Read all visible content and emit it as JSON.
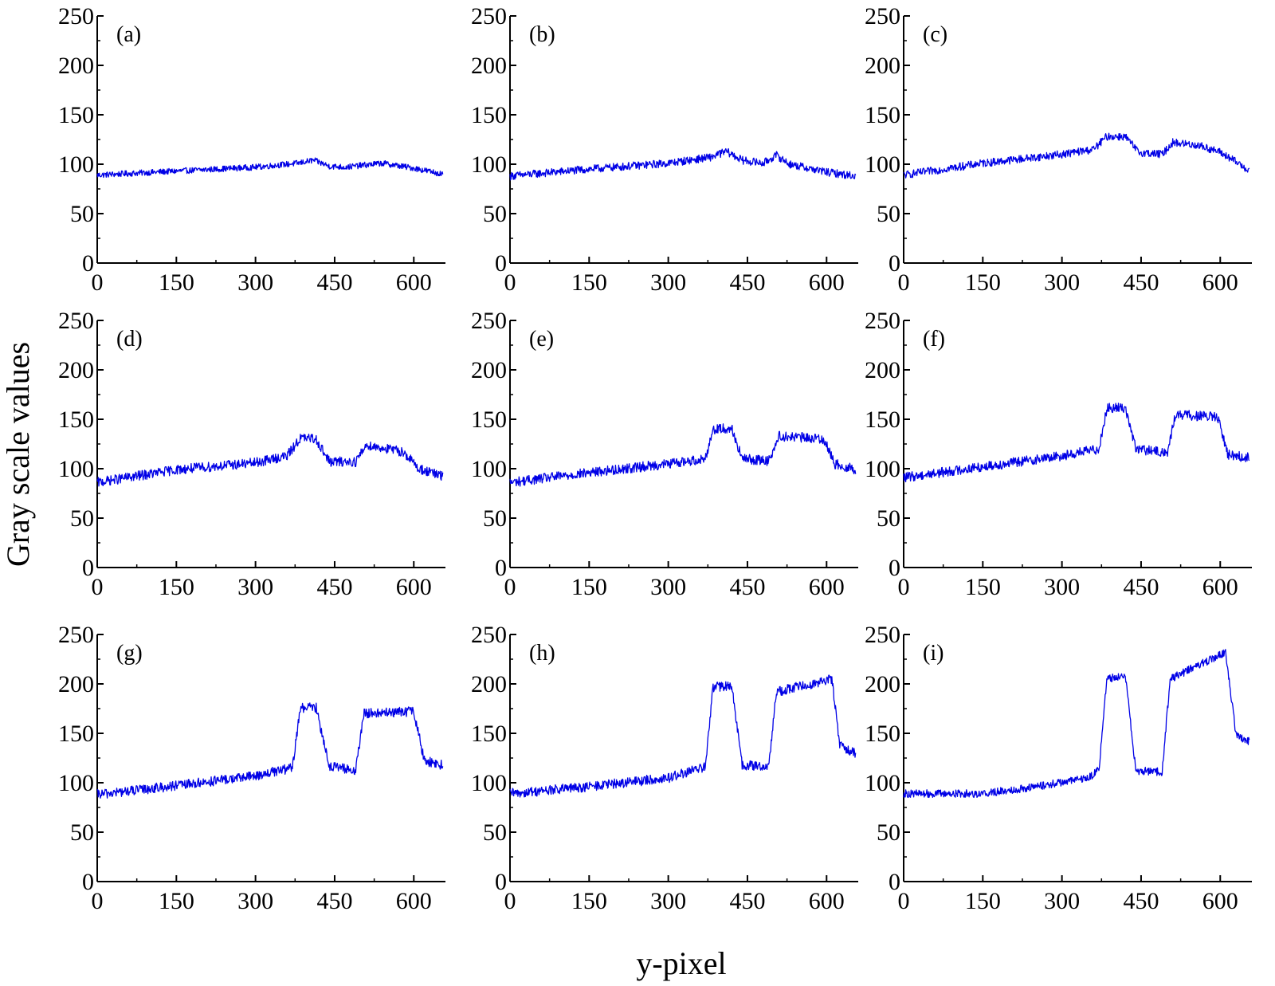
{
  "figure": {
    "ylabel": "Gray scale values",
    "xlabel": "y-pixel"
  },
  "style": {
    "series_color": "#0000e6",
    "axis_color": "#000000"
  },
  "chart_data": [
    {
      "type": "line",
      "panel_label": "(a)",
      "xlim": [
        0,
        660
      ],
      "ylim": [
        0,
        250
      ],
      "x_ticks": [
        "0",
        "150",
        "300",
        "450",
        "600"
      ],
      "y_ticks": [
        "0",
        "50",
        "100",
        "150",
        "200",
        "250"
      ],
      "grid": false,
      "noise": 3,
      "profile": [
        [
          0,
          89
        ],
        [
          150,
          93
        ],
        [
          300,
          97
        ],
        [
          380,
          101
        ],
        [
          410,
          104
        ],
        [
          440,
          98
        ],
        [
          470,
          97
        ],
        [
          540,
          101
        ],
        [
          600,
          96
        ],
        [
          655,
          90
        ]
      ]
    },
    {
      "type": "line",
      "panel_label": "(b)",
      "xlim": [
        0,
        660
      ],
      "ylim": [
        0,
        250
      ],
      "x_ticks": [
        "0",
        "150",
        "300",
        "450",
        "600"
      ],
      "y_ticks": [
        "0",
        "50",
        "100",
        "150",
        "200",
        "250"
      ],
      "grid": false,
      "noise": 4,
      "profile": [
        [
          0,
          88
        ],
        [
          150,
          95
        ],
        [
          300,
          101
        ],
        [
          380,
          107
        ],
        [
          410,
          113
        ],
        [
          440,
          104
        ],
        [
          480,
          101
        ],
        [
          505,
          109
        ],
        [
          530,
          100
        ],
        [
          600,
          92
        ],
        [
          655,
          88
        ]
      ]
    },
    {
      "type": "line",
      "panel_label": "(c)",
      "xlim": [
        0,
        660
      ],
      "ylim": [
        0,
        250
      ],
      "x_ticks": [
        "0",
        "150",
        "300",
        "450",
        "600"
      ],
      "y_ticks": [
        "0",
        "50",
        "100",
        "150",
        "200",
        "250"
      ],
      "grid": false,
      "noise": 4,
      "profile": [
        [
          0,
          89
        ],
        [
          150,
          101
        ],
        [
          300,
          110
        ],
        [
          360,
          115
        ],
        [
          385,
          128
        ],
        [
          420,
          128
        ],
        [
          445,
          112
        ],
        [
          490,
          110
        ],
        [
          510,
          122
        ],
        [
          560,
          119
        ],
        [
          600,
          112
        ],
        [
          640,
          99
        ],
        [
          655,
          94
        ]
      ]
    },
    {
      "type": "line",
      "panel_label": "(d)",
      "xlim": [
        0,
        660
      ],
      "ylim": [
        0,
        250
      ],
      "x_ticks": [
        "0",
        "150",
        "300",
        "450",
        "600"
      ],
      "y_ticks": [
        "0",
        "50",
        "100",
        "150",
        "200",
        "250"
      ],
      "grid": false,
      "noise": 5,
      "profile": [
        [
          0,
          86
        ],
        [
          150,
          99
        ],
        [
          300,
          106
        ],
        [
          360,
          113
        ],
        [
          385,
          131
        ],
        [
          415,
          130
        ],
        [
          440,
          107
        ],
        [
          490,
          107
        ],
        [
          510,
          124
        ],
        [
          580,
          117
        ],
        [
          610,
          100
        ],
        [
          655,
          92
        ]
      ]
    },
    {
      "type": "line",
      "panel_label": "(e)",
      "xlim": [
        0,
        660
      ],
      "ylim": [
        0,
        250
      ],
      "x_ticks": [
        "0",
        "150",
        "300",
        "450",
        "600"
      ],
      "y_ticks": [
        "0",
        "50",
        "100",
        "150",
        "200",
        "250"
      ],
      "grid": false,
      "noise": 5,
      "profile": [
        [
          0,
          86
        ],
        [
          150,
          96
        ],
        [
          300,
          105
        ],
        [
          370,
          110
        ],
        [
          385,
          140
        ],
        [
          420,
          141
        ],
        [
          440,
          110
        ],
        [
          490,
          108
        ],
        [
          510,
          133
        ],
        [
          595,
          130
        ],
        [
          615,
          105
        ],
        [
          655,
          99
        ]
      ]
    },
    {
      "type": "line",
      "panel_label": "(f)",
      "xlim": [
        0,
        660
      ],
      "ylim": [
        0,
        250
      ],
      "x_ticks": [
        "0",
        "150",
        "300",
        "450",
        "600"
      ],
      "y_ticks": [
        "0",
        "50",
        "100",
        "150",
        "200",
        "250"
      ],
      "grid": false,
      "noise": 5,
      "profile": [
        [
          0,
          91
        ],
        [
          150,
          102
        ],
        [
          300,
          113
        ],
        [
          370,
          120
        ],
        [
          385,
          161
        ],
        [
          420,
          162
        ],
        [
          440,
          120
        ],
        [
          500,
          116
        ],
        [
          515,
          155
        ],
        [
          595,
          152
        ],
        [
          615,
          114
        ],
        [
          655,
          111
        ]
      ]
    },
    {
      "type": "line",
      "panel_label": "(g)",
      "xlim": [
        0,
        660
      ],
      "ylim": [
        0,
        250
      ],
      "x_ticks": [
        "0",
        "150",
        "300",
        "450",
        "600"
      ],
      "y_ticks": [
        "0",
        "50",
        "100",
        "150",
        "200",
        "250"
      ],
      "grid": false,
      "noise": 5,
      "profile": [
        [
          0,
          88
        ],
        [
          150,
          97
        ],
        [
          300,
          107
        ],
        [
          370,
          115
        ],
        [
          385,
          176
        ],
        [
          415,
          176
        ],
        [
          440,
          117
        ],
        [
          490,
          112
        ],
        [
          505,
          170
        ],
        [
          600,
          172
        ],
        [
          620,
          122
        ],
        [
          655,
          118
        ]
      ]
    },
    {
      "type": "line",
      "panel_label": "(h)",
      "xlim": [
        0,
        660
      ],
      "ylim": [
        0,
        250
      ],
      "x_ticks": [
        "0",
        "150",
        "300",
        "450",
        "600"
      ],
      "y_ticks": [
        "0",
        "50",
        "100",
        "150",
        "200",
        "250"
      ],
      "grid": false,
      "noise": 5,
      "profile": [
        [
          0,
          89
        ],
        [
          150,
          96
        ],
        [
          300,
          105
        ],
        [
          370,
          116
        ],
        [
          385,
          197
        ],
        [
          420,
          198
        ],
        [
          440,
          118
        ],
        [
          490,
          116
        ],
        [
          505,
          192
        ],
        [
          610,
          205
        ],
        [
          625,
          138
        ],
        [
          655,
          130
        ]
      ]
    },
    {
      "type": "line",
      "panel_label": "(i)",
      "xlim": [
        0,
        660
      ],
      "ylim": [
        0,
        250
      ],
      "x_ticks": [
        "0",
        "150",
        "300",
        "450",
        "600"
      ],
      "y_ticks": [
        "0",
        "50",
        "100",
        "150",
        "200",
        "250"
      ],
      "grid": false,
      "noise": 4,
      "profile": [
        [
          0,
          89
        ],
        [
          150,
          89
        ],
        [
          250,
          96
        ],
        [
          350,
          105
        ],
        [
          370,
          113
        ],
        [
          385,
          205
        ],
        [
          420,
          209
        ],
        [
          440,
          112
        ],
        [
          490,
          111
        ],
        [
          505,
          205
        ],
        [
          610,
          232
        ],
        [
          630,
          148
        ],
        [
          655,
          142
        ]
      ]
    }
  ]
}
